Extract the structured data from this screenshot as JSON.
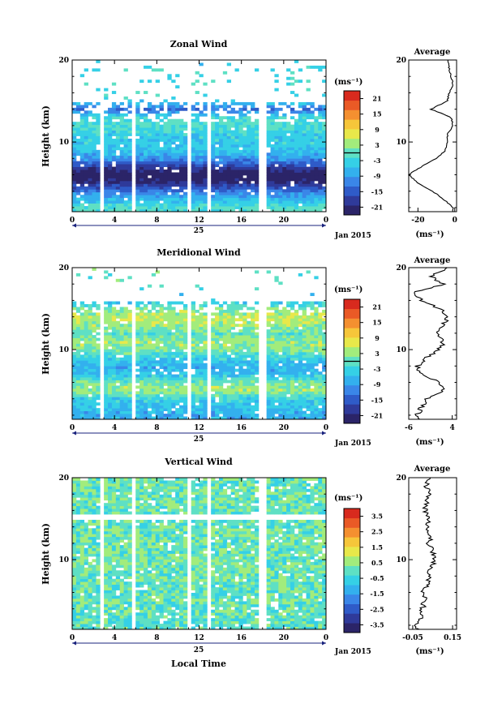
{
  "figure": {
    "x_title": "Local Time",
    "date_label": "Jan 2015",
    "day_label": "25",
    "unit_label": "(ms⁻¹)",
    "avg_title": "Average",
    "avg_xlabel": "(ms⁻¹)"
  },
  "colors": {
    "scale": [
      "#2b2468",
      "#2f3a9a",
      "#2f5bc8",
      "#3a86e8",
      "#33b0ee",
      "#35d0e6",
      "#5ee0c4",
      "#a2ec7c",
      "#e8e84a",
      "#f6c63a",
      "#f49030",
      "#ea5a26",
      "#d82a1e"
    ]
  },
  "chart_data": [
    {
      "type": "heatmap",
      "title": "Zonal Wind",
      "ylabel": "Height (km)",
      "xlabel": "",
      "xlim": [
        0,
        24
      ],
      "ylim": [
        1.5,
        20
      ],
      "x_ticks": [
        "0",
        "4",
        "8",
        "12",
        "16",
        "20",
        "0"
      ],
      "y_ticks": [
        "10",
        "20"
      ],
      "colorbar": {
        "unit": "(ms⁻¹)",
        "range": [
          -24,
          24
        ],
        "ticks": [
          "21",
          "15",
          "9",
          "3",
          "-3",
          "-9",
          "-15",
          "-21"
        ],
        "zero_line": true
      },
      "data_gaps_hours": [
        [
          2.5,
          3.0
        ],
        [
          5.6,
          6.0
        ],
        [
          10.8,
          11.2
        ],
        [
          12.8,
          13.2
        ],
        [
          17.6,
          18.2
        ]
      ],
      "mean_profile": {
        "title": "Average",
        "xlabel": "(ms⁻¹)",
        "x_ticks": [
          "-20",
          "0"
        ],
        "xlim": [
          -25,
          1
        ],
        "y_ticks": [
          "10",
          "20"
        ],
        "height_km": [
          2,
          3,
          4,
          5,
          6,
          7,
          8,
          9,
          10,
          11,
          12,
          13,
          14,
          15,
          16,
          17,
          18,
          19,
          20
        ],
        "value": [
          -1,
          -6,
          -12,
          -20,
          -25,
          -18,
          -10,
          -5,
          -4,
          -4,
          -1,
          -2,
          -13,
          -4,
          -3,
          -1,
          -2,
          -3,
          -4
        ]
      }
    },
    {
      "type": "heatmap",
      "title": "Meridional Wind",
      "ylabel": "Height (km)",
      "xlabel": "",
      "xlim": [
        0,
        24
      ],
      "ylim": [
        1.5,
        20
      ],
      "x_ticks": [
        "0",
        "4",
        "8",
        "12",
        "16",
        "20",
        "0"
      ],
      "y_ticks": [
        "10",
        "20"
      ],
      "colorbar": {
        "unit": "(ms⁻¹)",
        "range": [
          -24,
          24
        ],
        "ticks": [
          "21",
          "15",
          "9",
          "3",
          "-3",
          "-9",
          "-15",
          "-21"
        ],
        "zero_line": true
      },
      "data_gaps_hours": [
        [
          2.5,
          3.0
        ],
        [
          5.6,
          6.0
        ],
        [
          10.8,
          11.2
        ],
        [
          12.8,
          13.2
        ],
        [
          17.6,
          18.2
        ]
      ],
      "mean_profile": {
        "title": "Average",
        "xlabel": "(ms⁻¹)",
        "x_ticks": [
          "-6",
          "4"
        ],
        "xlim": [
          -6,
          5
        ],
        "y_ticks": [
          "10",
          "20"
        ],
        "height_km": [
          2,
          3,
          4,
          5,
          6,
          7,
          8,
          9,
          10,
          11,
          12,
          13,
          14,
          15,
          16,
          17,
          18,
          19,
          20
        ],
        "value": [
          -4,
          -3,
          -2,
          2,
          1,
          -3,
          -4,
          -2,
          1,
          2,
          0,
          2,
          3,
          1,
          -3,
          -5,
          2,
          -1,
          3
        ]
      }
    },
    {
      "type": "heatmap",
      "title": "Vertical Wind",
      "ylabel": "Height (km)",
      "xlabel": "Local Time",
      "xlim": [
        0,
        24
      ],
      "ylim": [
        1.5,
        20
      ],
      "x_ticks": [
        "0",
        "4",
        "8",
        "12",
        "16",
        "20",
        "0"
      ],
      "y_ticks": [
        "10",
        "20"
      ],
      "colorbar": {
        "unit": "(ms⁻¹)",
        "range": [
          -4,
          4
        ],
        "ticks": [
          "3.5",
          "2.5",
          "1.5",
          "0.5",
          "-0.5",
          "-1.5",
          "-2.5",
          "-3.5"
        ],
        "zero_line": false
      },
      "data_gaps_hours": [
        [
          2.5,
          3.0
        ],
        [
          5.6,
          6.0
        ],
        [
          10.8,
          11.2
        ],
        [
          12.8,
          13.2
        ],
        [
          17.6,
          18.2
        ]
      ],
      "mean_profile": {
        "title": "Average",
        "xlabel": "(ms⁻¹)",
        "x_ticks": [
          "-0.05",
          "0.15"
        ],
        "xlim": [
          -0.07,
          0.17
        ],
        "y_ticks": [
          "10",
          "20"
        ],
        "height_km": [
          2,
          3,
          4,
          5,
          6,
          7,
          8,
          9,
          10,
          11,
          12,
          13,
          14,
          15,
          16,
          17,
          18,
          19,
          20
        ],
        "value": [
          -0.03,
          -0.01,
          0.0,
          0.01,
          0.0,
          0.02,
          0.03,
          0.04,
          0.06,
          0.05,
          0.03,
          0.04,
          0.02,
          0.03,
          0.01,
          0.02,
          0.03,
          0.02,
          0.03
        ]
      }
    }
  ]
}
